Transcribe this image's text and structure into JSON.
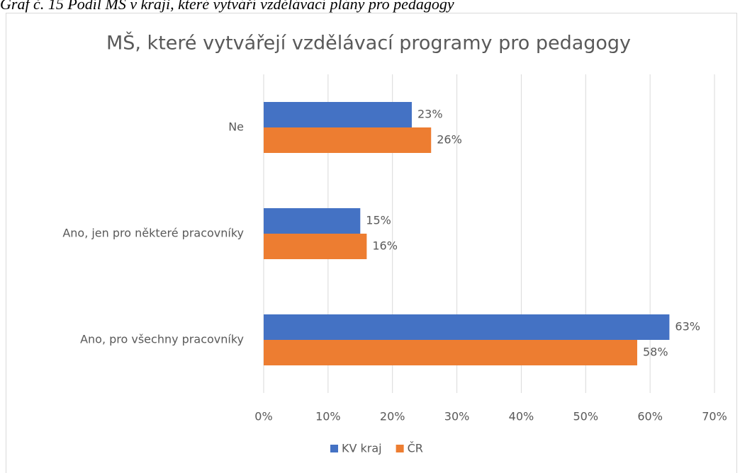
{
  "caption": "Graf č. 15 Podíl MŠ v kraji, které vytváří vzdělávací plány pro pedagogy",
  "chart_data": {
    "type": "barh",
    "title": "MŠ, které vytvářejí vzdělávací programy pro pedagogy",
    "categories": [
      "Ne",
      "Ano, jen pro některé pracovníky",
      "Ano, pro všechny pracovníky"
    ],
    "series": [
      {
        "name": "KV kraj",
        "color": "#4472c4",
        "values": [
          23,
          15,
          63
        ],
        "value_labels": [
          "23%",
          "15%",
          "63%"
        ]
      },
      {
        "name": "ČR",
        "color": "#ed7d31",
        "values": [
          26,
          16,
          58
        ],
        "value_labels": [
          "26%",
          "16%",
          "58%"
        ]
      }
    ],
    "xlim": [
      0,
      70
    ],
    "xticks": [
      {
        "value": 0,
        "label": "0%"
      },
      {
        "value": 10,
        "label": "10%"
      },
      {
        "value": 20,
        "label": "20%"
      },
      {
        "value": 30,
        "label": "30%"
      },
      {
        "value": 40,
        "label": "40%"
      },
      {
        "value": 50,
        "label": "50%"
      },
      {
        "value": 60,
        "label": "60%"
      },
      {
        "value": 70,
        "label": "70%"
      }
    ],
    "grid": true,
    "legend": "bottom"
  }
}
